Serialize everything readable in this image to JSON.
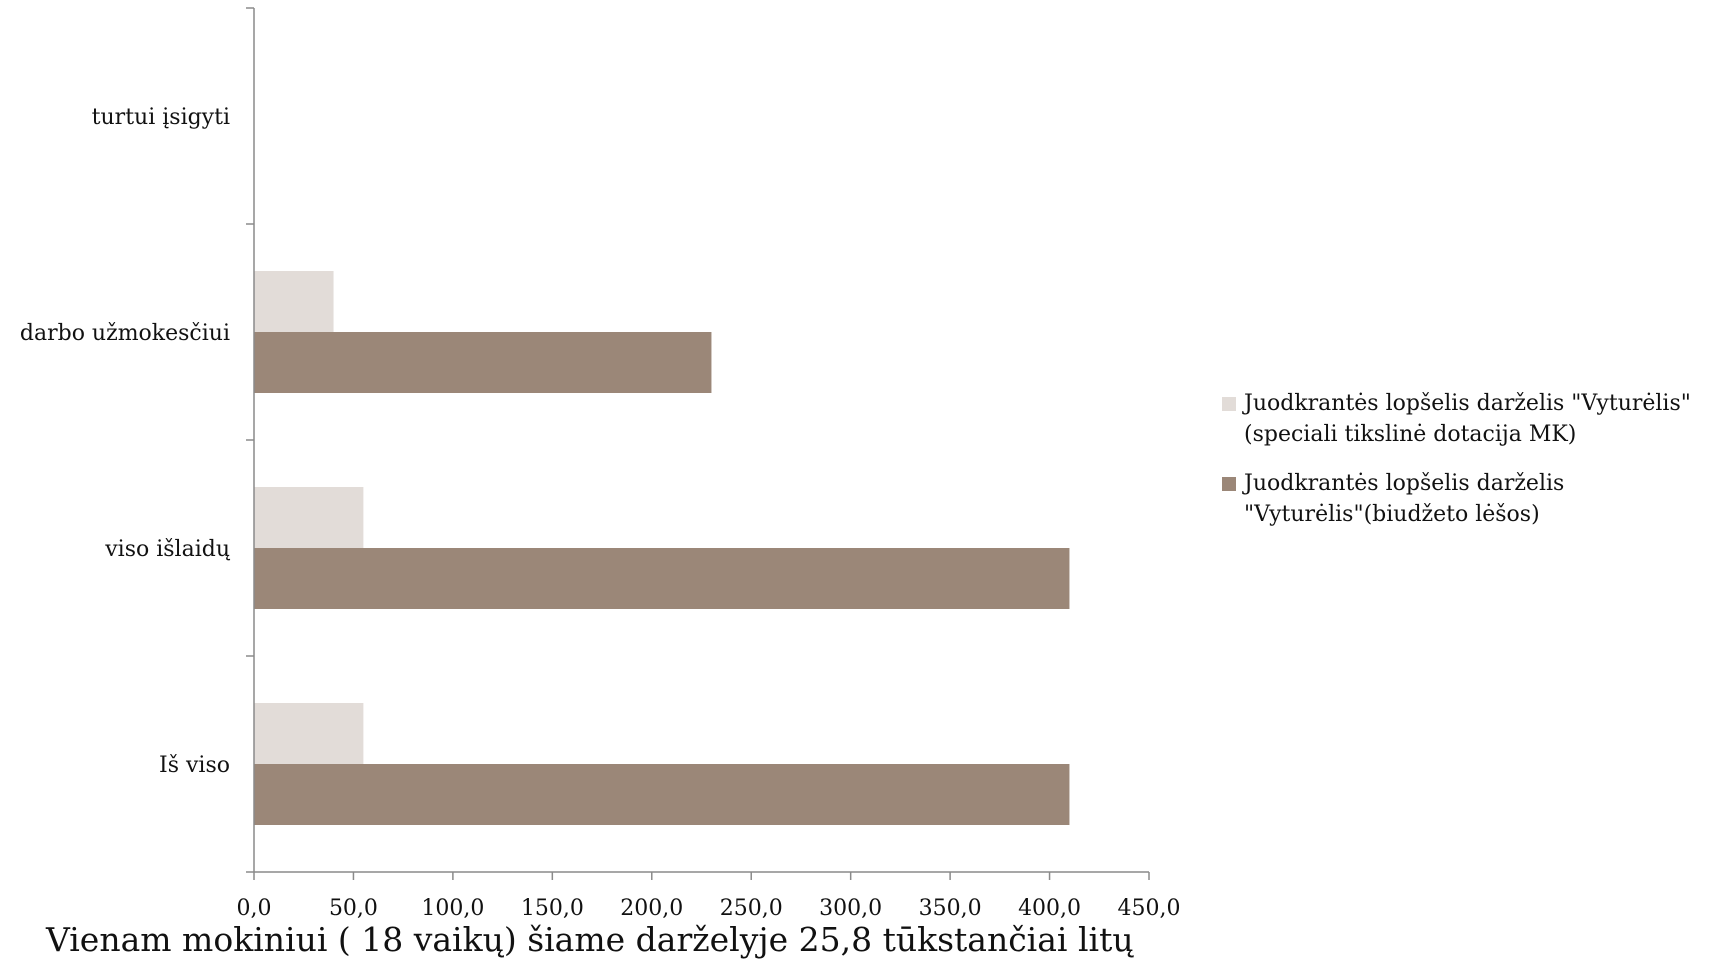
{
  "chart_data": {
    "type": "bar",
    "orientation": "horizontal",
    "categories": [
      "turtui įsigyti",
      "darbo užmokesčiui",
      "viso išlaidų",
      "Iš viso"
    ],
    "series": [
      {
        "name": "Juodkrantės lopšelis darželis \"Vyturėlis\" (speciali tikslinė dotacija MK)",
        "color": "#e2dcd8",
        "values": [
          0,
          40,
          55,
          55
        ]
      },
      {
        "name": "Juodkrantės lopšelis darželis \"Vyturėlis\"(biudžeto lėšos)",
        "color": "#9b8778",
        "values": [
          0,
          230,
          410,
          410
        ]
      }
    ],
    "x_ticks": [
      "0,0",
      "50,0",
      "100,0",
      "150,0",
      "200,0",
      "250,0",
      "300,0",
      "350,0",
      "400,0",
      "450,0"
    ],
    "xlim": [
      0,
      450
    ],
    "legend_position": "right",
    "grid": false,
    "caption": "Vienam mokiniui ( 18 vaikų) šiame darželyje 25,8 tūkstančiai litų"
  },
  "legend": {
    "items": [
      {
        "line1": "Juodkrantės lopšelis darželis \"Vyturėlis\"",
        "line2": "(speciali tikslinė dotacija MK)",
        "color": "#e2dcd8"
      },
      {
        "line1": "Juodkrantės lopšelis darželis",
        "line2": "\"Vyturėlis\"(biudžeto lėšos)",
        "color": "#9b8778"
      }
    ]
  }
}
